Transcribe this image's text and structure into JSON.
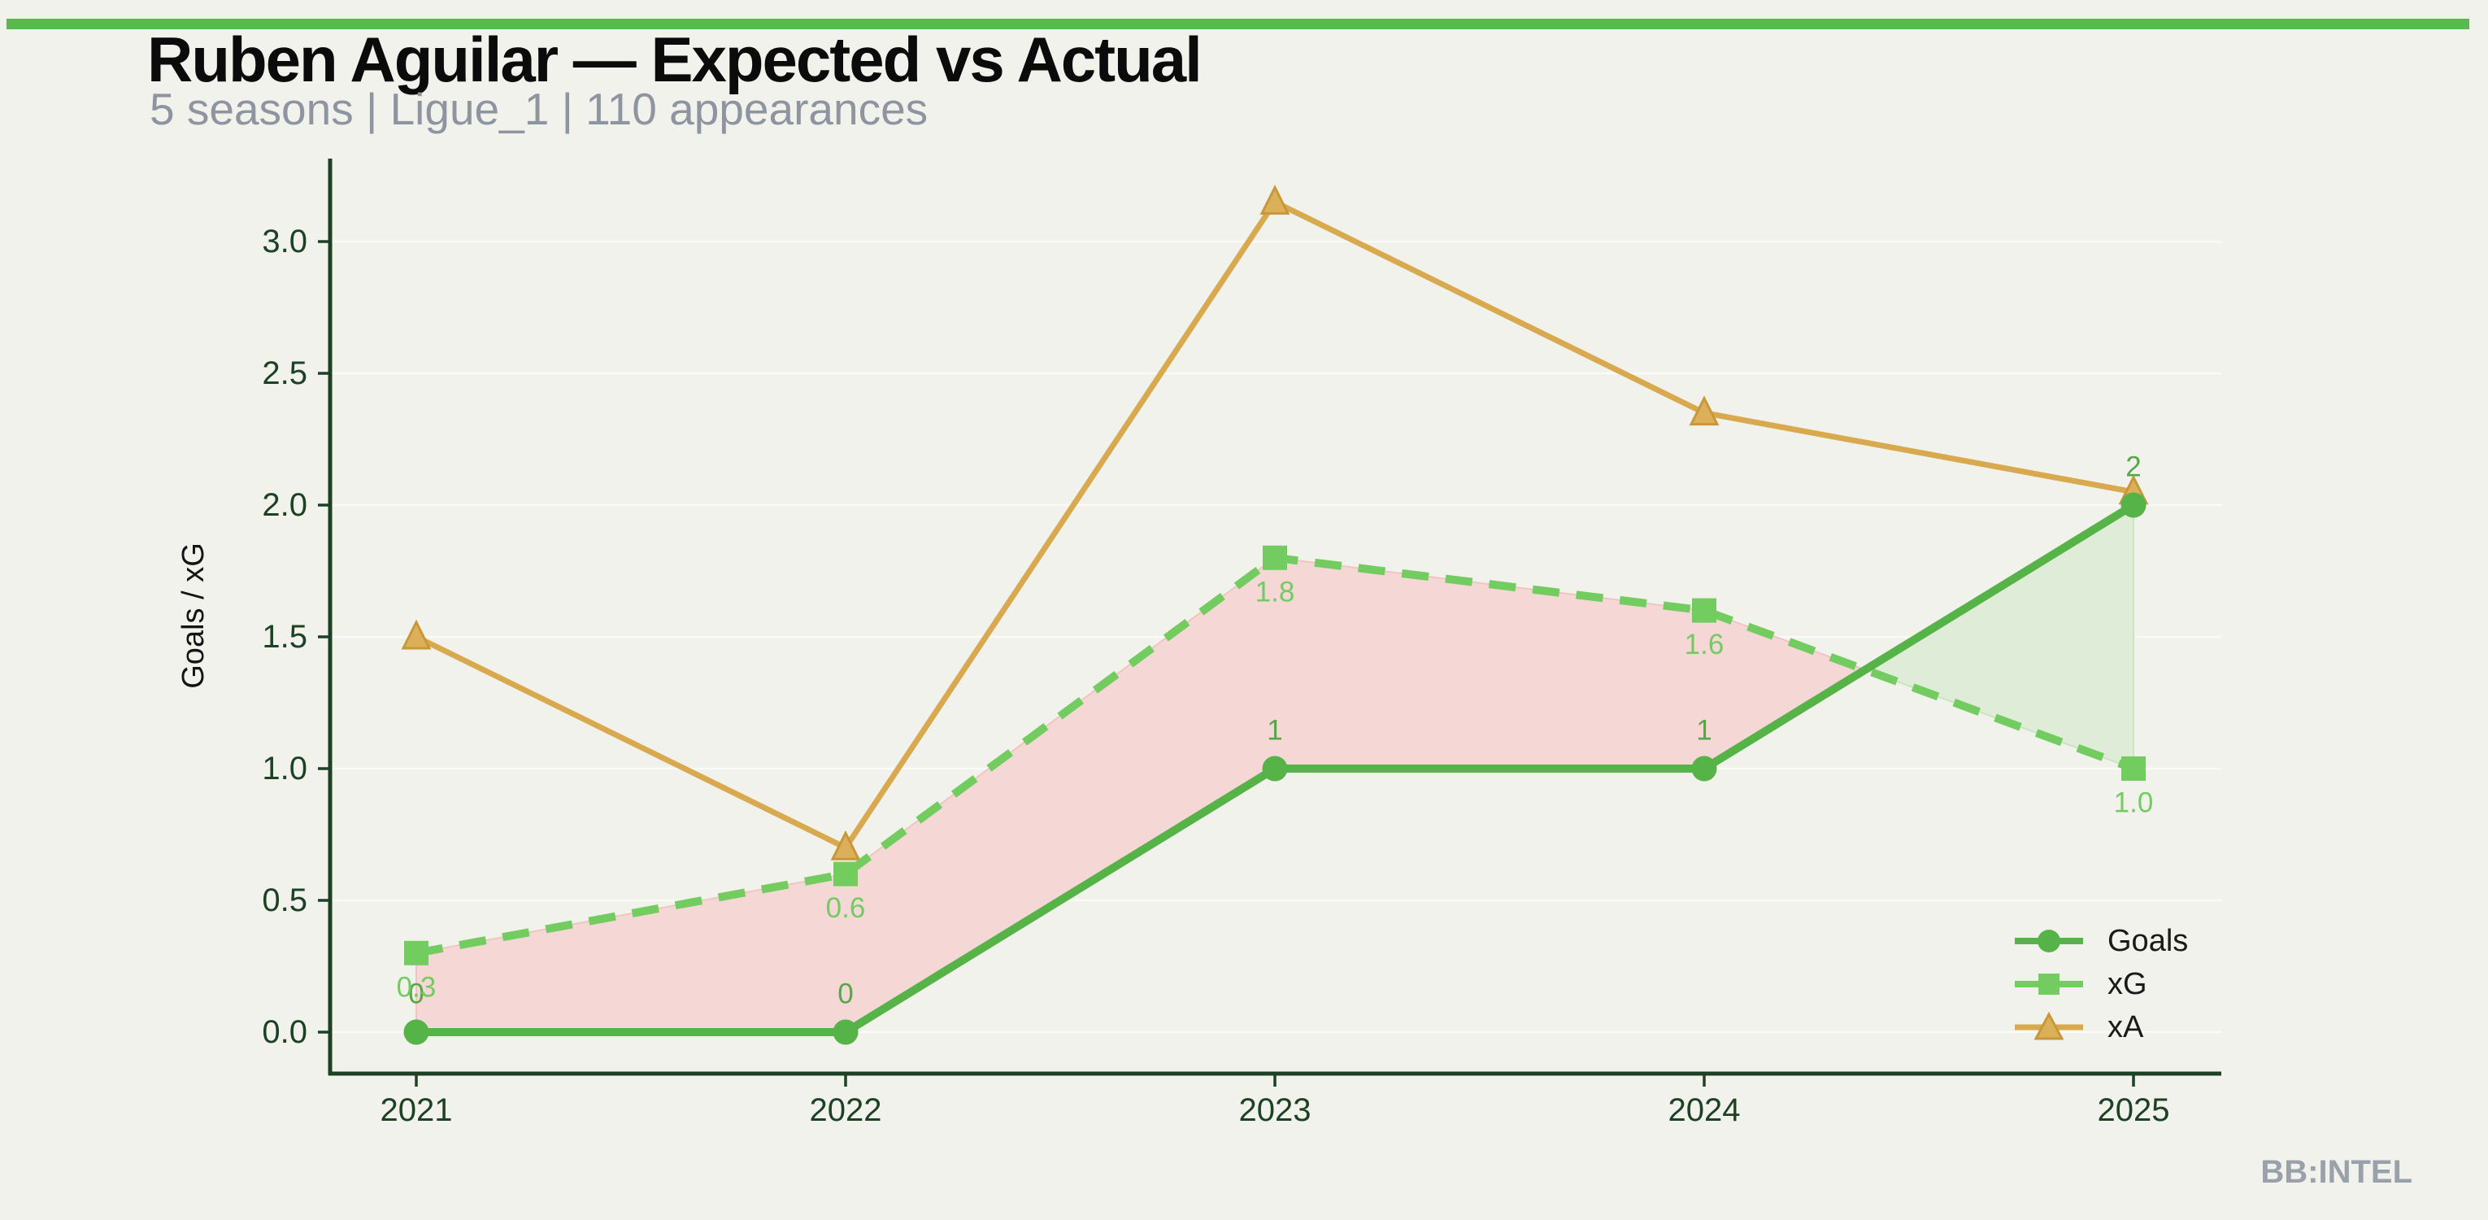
{
  "page": {
    "background": "#f1f2eb",
    "accent_bar_color": "#5bb84e"
  },
  "header": {
    "title": "Ruben Aguilar — Expected vs Actual",
    "subtitle": "5 seasons | Ligue_1 | 110 appearances",
    "title_color": "#0b0b0b",
    "subtitle_color": "#8e95a0"
  },
  "footer": {
    "watermark": "BB:INTEL",
    "watermark_color": "#9aa1ab"
  },
  "axes": {
    "ylabel": "Goals / xG",
    "ylabel_color": "#141414",
    "axis_color": "#1d4125",
    "tick_label_color": "#1d4125",
    "ytick_labels": [
      "0.0",
      "0.5",
      "1.0",
      "1.5",
      "2.0",
      "2.5",
      "3.0"
    ],
    "xtick_labels": [
      "2021",
      "2022",
      "2023",
      "2024",
      "2025"
    ],
    "gridline_color": "rgba(255,255,255,0.65)"
  },
  "legend": {
    "labels": [
      "Goals",
      "xG",
      "xA"
    ],
    "text_color": "#1a1a1a"
  },
  "chart_data": {
    "type": "line",
    "title": "Ruben Aguilar — Expected vs Actual",
    "subtitle": "5 seasons | Ligue_1 | 110 appearances",
    "categories": [
      2021,
      2022,
      2023,
      2024,
      2025
    ],
    "xlabel": "",
    "ylabel": "Goals / xG",
    "ylim": [
      0,
      3.3
    ],
    "yticks": [
      0,
      0.5,
      1,
      1.5,
      2,
      2.5,
      3
    ],
    "grid": true,
    "legend_position": "lower right",
    "series": [
      {
        "name": "Goals",
        "marker": "circle",
        "line_style": "solid",
        "color": "#56b347",
        "label_color": "#55a846",
        "values": [
          0,
          0,
          1,
          1,
          2
        ],
        "point_labels": [
          "0",
          "0",
          "1",
          "1",
          "2"
        ]
      },
      {
        "name": "xG",
        "marker": "square",
        "line_style": "dashed",
        "color": "#72cc60",
        "label_color": "#74ca63",
        "values": [
          0.3,
          0.6,
          1.8,
          1.6,
          1.0
        ],
        "point_labels": [
          "0.3",
          "0.6",
          "1.8",
          "1.6",
          "1.0"
        ]
      },
      {
        "name": "xA",
        "marker": "triangle",
        "line_style": "solid",
        "color": "#d8a94e",
        "marker_fill": "#dcb05a",
        "marker_edge": "#c89738",
        "values": [
          1.5,
          0.7,
          3.15,
          2.35,
          2.05
        ],
        "point_labels": []
      }
    ],
    "fill_between": {
      "upper": "xG",
      "lower": "Goals",
      "xg_over_goals_color": "#f5d8d5",
      "xg_over_goals_edge": "#f0c5c1",
      "goals_over_xg_color": "#dfecd8",
      "goals_over_xg_edge": "#cbe4c0"
    }
  }
}
